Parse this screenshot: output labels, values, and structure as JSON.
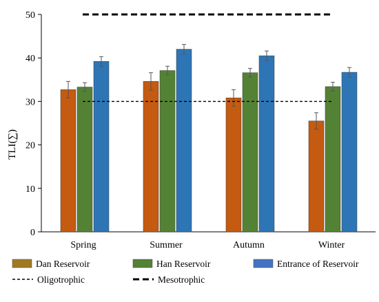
{
  "chart_data": {
    "type": "bar",
    "ylabel": "TLI(∑)",
    "ylim": [
      0,
      50
    ],
    "yticks": [
      0,
      10,
      20,
      30,
      40,
      50
    ],
    "grid": false,
    "legend_position": "bottom",
    "categories": [
      "Spring",
      "Summer",
      "Autumn",
      "Winter"
    ],
    "series": [
      {
        "name": "Dan Reservoir",
        "color": "#C55A11",
        "legend_color": "#A07A20",
        "values": [
          32.7,
          34.6,
          30.8,
          25.5
        ],
        "errors": [
          1.9,
          2.0,
          1.9,
          1.9
        ]
      },
      {
        "name": "Han Reservoir",
        "color": "#548235",
        "values": [
          33.3,
          37.1,
          36.6,
          33.4
        ],
        "errors": [
          1.0,
          1.0,
          1.0,
          1.0
        ]
      },
      {
        "name": "Entrance of Reservoir",
        "color": "#2E75B6",
        "legend_color": "#4472C4",
        "values": [
          39.2,
          42.0,
          40.5,
          36.7
        ],
        "errors": [
          1.1,
          1.1,
          1.1,
          1.1
        ]
      }
    ],
    "reference_lines": [
      {
        "name": "Oligotrophic",
        "value": 30,
        "style": "dashed-thin"
      },
      {
        "name": "Mesotrophic",
        "value": 50,
        "style": "dashed-thick"
      }
    ]
  }
}
